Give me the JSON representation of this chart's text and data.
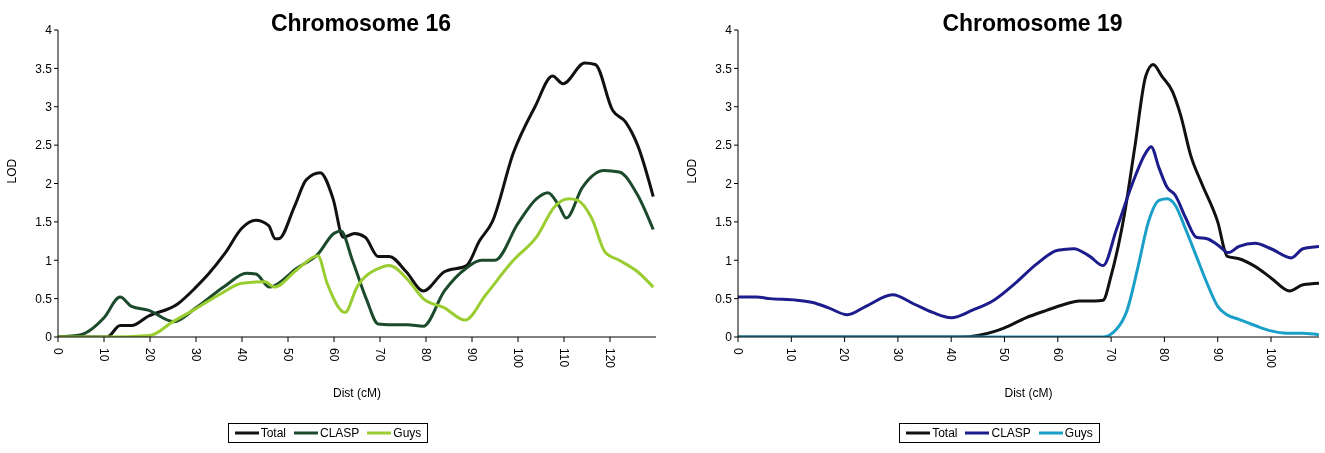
{
  "chart_data": [
    {
      "type": "line",
      "title": "Chromosome 16",
      "xlabel": "Dist (cM)",
      "ylabel": "LOD",
      "xlim": [
        0,
        130
      ],
      "xticks": [
        0,
        10,
        20,
        30,
        40,
        50,
        60,
        70,
        80,
        90,
        100,
        110,
        120
      ],
      "ylim": [
        0,
        4
      ],
      "yticks": [
        0,
        0.5,
        1,
        1.5,
        2,
        2.5,
        3,
        3.5,
        4
      ],
      "legend": "bottom",
      "grid": false,
      "series": [
        {
          "name": "Total",
          "color": "#111111",
          "x": [
            0,
            10.7,
            13.5,
            16,
            19.6,
            26,
            30,
            32.7,
            36.4,
            40,
            43,
            45.8,
            47.2,
            48,
            51.4,
            54,
            57,
            59.8,
            62,
            64.5,
            66.8,
            69.6,
            72,
            75.7,
            79.4,
            84,
            88.8,
            91.6,
            94.4,
            99,
            103.7,
            107.5,
            109.8,
            114.5,
            116.8,
            120.6,
            123.4,
            126,
            129.4
          ],
          "values": [
            0,
            0,
            0.15,
            0.15,
            0.27,
            0.43,
            0.65,
            0.82,
            1.1,
            1.42,
            1.52,
            1.45,
            1.28,
            1.28,
            1.7,
            2.05,
            2.14,
            1.8,
            1.3,
            1.35,
            1.3,
            1.05,
            1.05,
            0.85,
            0.6,
            0.85,
            0.93,
            1.25,
            1.5,
            2.4,
            3.0,
            3.4,
            3.3,
            3.57,
            3.55,
            2.95,
            2.8,
            2.5,
            1.83
          ]
        },
        {
          "name": "CLASP",
          "color": "#1c4a2c",
          "x": [
            0,
            5,
            10,
            13.5,
            16,
            19.6,
            25.2,
            30,
            36,
            41,
            43,
            46,
            52,
            56.5,
            60,
            61.5,
            64,
            67,
            69.6,
            72,
            76,
            79.4,
            84,
            88.8,
            92,
            95,
            100,
            104,
            106.5,
            109,
            110.5,
            114,
            118.7,
            122,
            126,
            129.4
          ],
          "values": [
            0,
            0.03,
            0.25,
            0.52,
            0.4,
            0.35,
            0.2,
            0.38,
            0.65,
            0.83,
            0.82,
            0.65,
            0.9,
            1.08,
            1.35,
            1.38,
            1.0,
            0.5,
            0.17,
            0.16,
            0.16,
            0.14,
            0.6,
            0.9,
            1.0,
            1.0,
            1.48,
            1.8,
            1.88,
            1.7,
            1.55,
            1.95,
            2.17,
            2.15,
            1.85,
            1.4
          ]
        },
        {
          "name": "Guys",
          "color": "#9acd32",
          "x": [
            0,
            10,
            20,
            25,
            30,
            35,
            40,
            45,
            47,
            52,
            56.5,
            58.5,
            62.4,
            65,
            70,
            72,
            76,
            79.4,
            84,
            88.5,
            93,
            99,
            104,
            108,
            111,
            113,
            116,
            119,
            122,
            126,
            129.4
          ],
          "values": [
            0,
            0,
            0.02,
            0.2,
            0.37,
            0.55,
            0.7,
            0.72,
            0.65,
            0.88,
            1.06,
            0.7,
            0.32,
            0.65,
            0.9,
            0.93,
            0.75,
            0.5,
            0.38,
            0.22,
            0.55,
            1.0,
            1.3,
            1.7,
            1.8,
            1.78,
            1.55,
            1.1,
            1.0,
            0.85,
            0.65
          ]
        }
      ]
    },
    {
      "type": "line",
      "title": "Chromosome 19",
      "xlabel": "Dist (cM)",
      "ylabel": "LOD",
      "xlim": [
        0,
        109
      ],
      "xticks": [
        0,
        10,
        20,
        30,
        40,
        50,
        60,
        70,
        80,
        90,
        100
      ],
      "ylim": [
        0,
        4
      ],
      "yticks": [
        0,
        0.5,
        1,
        1.5,
        2,
        2.5,
        3,
        3.5,
        4
      ],
      "legend": "bottom",
      "grid": false,
      "series": [
        {
          "name": "Total",
          "color": "#111111",
          "x": [
            0,
            42,
            45,
            48,
            50,
            54,
            58,
            61,
            64,
            67,
            68.5,
            70,
            72.5,
            74.5,
            76.5,
            77.9,
            79.5,
            81.5,
            83,
            85,
            87,
            90,
            91.8,
            94,
            97,
            100,
            103.5,
            106,
            109
          ],
          "values": [
            0,
            0,
            0.02,
            0.07,
            0.12,
            0.25,
            0.35,
            0.42,
            0.47,
            0.47,
            0.48,
            0.8,
            1.6,
            2.5,
            3.4,
            3.55,
            3.4,
            3.2,
            2.9,
            2.35,
            2.0,
            1.5,
            1.05,
            1.02,
            0.92,
            0.77,
            0.6,
            0.68,
            0.7
          ]
        },
        {
          "name": "CLASP",
          "color": "#1c1c8c",
          "x": [
            0,
            3.5,
            6,
            11,
            14,
            17,
            20.5,
            24,
            29,
            33,
            36.5,
            40,
            44,
            48,
            52,
            56,
            60,
            63,
            66,
            68.5,
            71,
            74,
            76.5,
            77.5,
            79,
            80.5,
            82,
            84,
            86,
            88,
            90,
            92,
            94,
            97,
            100,
            103.8,
            106,
            109
          ],
          "values": [
            0.52,
            0.52,
            0.5,
            0.48,
            0.45,
            0.38,
            0.29,
            0.4,
            0.55,
            0.43,
            0.32,
            0.25,
            0.35,
            0.48,
            0.7,
            0.95,
            1.13,
            1.15,
            1.05,
            0.93,
            1.4,
            2.0,
            2.4,
            2.48,
            2.2,
            1.95,
            1.85,
            1.55,
            1.3,
            1.28,
            1.2,
            1.1,
            1.18,
            1.22,
            1.15,
            1.03,
            1.15,
            1.18
          ]
        },
        {
          "name": "Guys",
          "color": "#1aa0c8",
          "x": [
            0,
            68.5,
            71,
            73,
            75,
            77,
            79,
            80.5,
            82,
            84,
            86,
            88,
            90,
            91.5,
            94,
            97,
            100,
            103,
            106,
            109
          ],
          "values": [
            0,
            0,
            0.1,
            0.35,
            0.9,
            1.5,
            1.78,
            1.8,
            1.72,
            1.4,
            1.05,
            0.7,
            0.4,
            0.3,
            0.23,
            0.15,
            0.08,
            0.05,
            0.05,
            0.03
          ]
        }
      ]
    }
  ]
}
